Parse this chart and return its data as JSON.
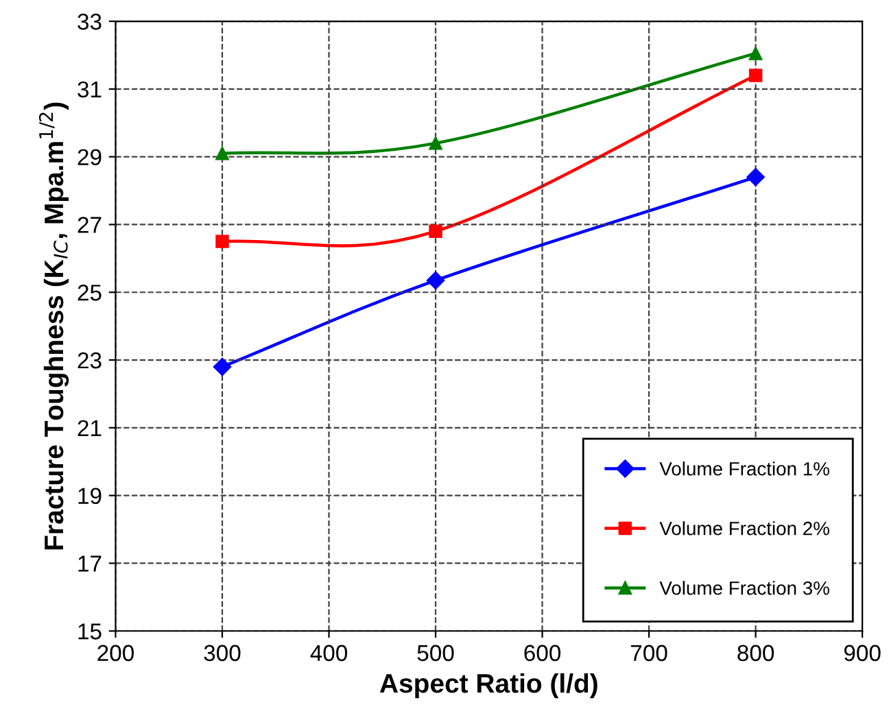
{
  "chart_data": {
    "type": "line",
    "xlabel": "Aspect Ratio (l/d)",
    "ylabel": "Fracture Toughness (K$_{IC}$, Mpa.m$^{1/2}$)",
    "x": [
      300,
      500,
      800
    ],
    "series": [
      {
        "name": "Volume Fraction 1%",
        "color": "#0000ff",
        "marker": "diamond",
        "values": [
          22.8,
          25.35,
          28.4
        ]
      },
      {
        "name": "Volume Fraction 2%",
        "color": "#ff0000",
        "marker": "square",
        "values": [
          26.5,
          26.8,
          31.4
        ]
      },
      {
        "name": "Volume Fraction 3%",
        "color": "#008000",
        "marker": "triangle",
        "values": [
          29.1,
          29.4,
          32.05
        ]
      }
    ],
    "xlim": [
      200,
      900
    ],
    "xticks": [
      200,
      300,
      400,
      500,
      600,
      700,
      800,
      900
    ],
    "ylim": [
      15,
      33
    ],
    "yticks": [
      15,
      17,
      19,
      21,
      23,
      25,
      27,
      29,
      31,
      33
    ],
    "grid": true,
    "legend": "bottom right",
    "line_style": "solid"
  }
}
